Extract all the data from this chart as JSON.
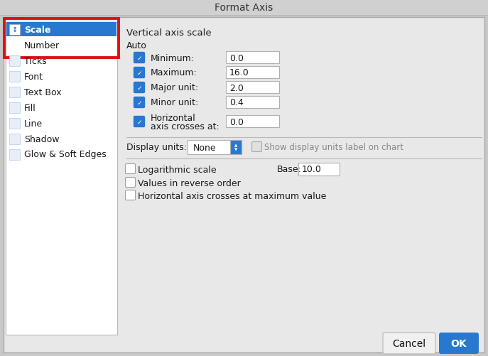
{
  "title": "Format Axis",
  "outer_bg": "#c8c8c8",
  "titlebar_bg": "#d8d8d8",
  "dialog_bg": "#e8e8e8",
  "left_panel_bg": "#ffffff",
  "left_panel_border": "#b8b8b8",
  "highlight_color": "#2878d0",
  "highlight_text": "#ffffff",
  "normal_text": "#1a1a1a",
  "red_border": "#dd1111",
  "section_title": "Vertical axis scale",
  "auto_label": "Auto",
  "fields": [
    {
      "label": "Minimum:",
      "value": "0.0",
      "checked": true,
      "multiline": false
    },
    {
      "label": "Maximum:",
      "value": "16.0",
      "checked": true,
      "multiline": false
    },
    {
      "label": "Major unit:",
      "value": "2.0",
      "checked": true,
      "multiline": false
    },
    {
      "label": "Minor unit:",
      "value": "0.4",
      "checked": true,
      "multiline": false
    },
    {
      "label": "Horizontal\naxis crosses at:",
      "value": "0.0",
      "checked": true,
      "multiline": true
    }
  ],
  "display_units_label": "Display units:",
  "display_units_value": "None",
  "show_units_label": "Show display units label on chart",
  "log_scale_label": "Logarithmic scale",
  "base_label": "Base:",
  "base_value": "10.0",
  "reverse_label": "Values in reverse order",
  "horiz_max_label": "Horizontal axis crosses at maximum value",
  "cancel_btn": "Cancel",
  "ok_btn": "OK",
  "sidebar_items": [
    {
      "label": "Scale",
      "selected": true
    },
    {
      "label": "Number",
      "selected": false
    },
    {
      "label": "Ticks",
      "selected": false
    },
    {
      "label": "Font",
      "selected": false
    },
    {
      "label": "Text Box",
      "selected": false
    },
    {
      "label": "Fill",
      "selected": false
    },
    {
      "label": "Line",
      "selected": false
    },
    {
      "label": "Shadow",
      "selected": false
    },
    {
      "label": "Glow & Soft Edges",
      "selected": false
    }
  ],
  "checkbox_color": "#2878d0",
  "input_bg": "#ffffff",
  "input_border": "#b0b0b0",
  "separator_color": "#b8b8b8",
  "figsize": [
    6.87,
    5.02
  ],
  "dpi": 100
}
